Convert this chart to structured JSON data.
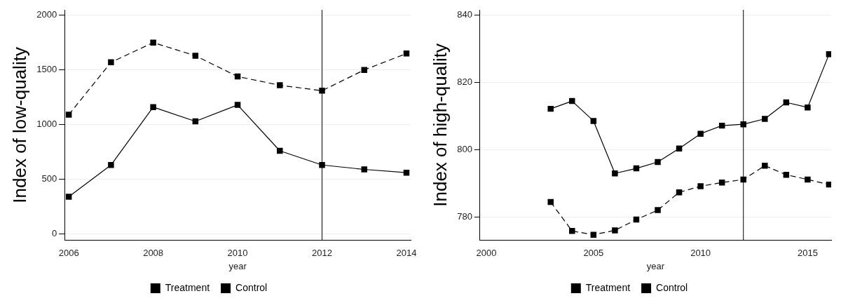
{
  "chart_data": [
    {
      "type": "line",
      "xlabel": "year",
      "ylabel": "Index of low-quality",
      "x": [
        2006,
        2007,
        2008,
        2009,
        2010,
        2011,
        2012,
        2013,
        2014
      ],
      "series": [
        {
          "name": "Treatment",
          "color": "#000000",
          "line_style": "solid",
          "values": [
            340,
            630,
            1160,
            1030,
            1180,
            760,
            630,
            590,
            560
          ]
        },
        {
          "name": "Control",
          "color": "#000000",
          "line_style": "dashed",
          "values": [
            1090,
            1570,
            1750,
            1630,
            1440,
            1360,
            1310,
            1500,
            1650
          ]
        }
      ],
      "xlim": [
        2005.9,
        2014.1
      ],
      "xticks": [
        2006,
        2008,
        2010,
        2012,
        2014
      ],
      "ylim": [
        -60,
        2050
      ],
      "yticks": [
        0,
        500,
        1000,
        1500,
        2000
      ],
      "grid": "y",
      "legend": "bottom",
      "marker": "square",
      "ref_lines": [
        {
          "axis": "x",
          "value": 2012,
          "color": "#000000"
        }
      ]
    },
    {
      "type": "line",
      "xlabel": "year",
      "ylabel": "Index of high-quality",
      "x": [
        2003,
        2004,
        2005,
        2006,
        2007,
        2008,
        2009,
        2010,
        2011,
        2012,
        2013,
        2014,
        2015,
        2016
      ],
      "series": [
        {
          "name": "Treatment",
          "color": "#000000",
          "line_style": "solid",
          "values": [
            812.1,
            814.4,
            808.5,
            792.9,
            794.4,
            796.3,
            800.3,
            804.7,
            807.1,
            807.5,
            809.1,
            814.0,
            812.5,
            828.3
          ]
        },
        {
          "name": "Control",
          "color": "#000000",
          "line_style": "dashed",
          "values": [
            784.4,
            775.8,
            774.7,
            776.0,
            779.2,
            782.0,
            787.3,
            789.1,
            790.2,
            791.1,
            795.2,
            792.5,
            791.1,
            789.6
          ]
        }
      ],
      "xlim": [
        1999.7,
        2016.1
      ],
      "xticks": [
        2000,
        2005,
        2010,
        2015
      ],
      "ylim": [
        773,
        841.5
      ],
      "yticks": [
        780,
        800,
        820,
        840
      ],
      "grid": "y",
      "legend": "bottom",
      "marker": "square",
      "ref_lines": [
        {
          "axis": "x",
          "value": 2012,
          "color": "#000000"
        }
      ]
    }
  ]
}
